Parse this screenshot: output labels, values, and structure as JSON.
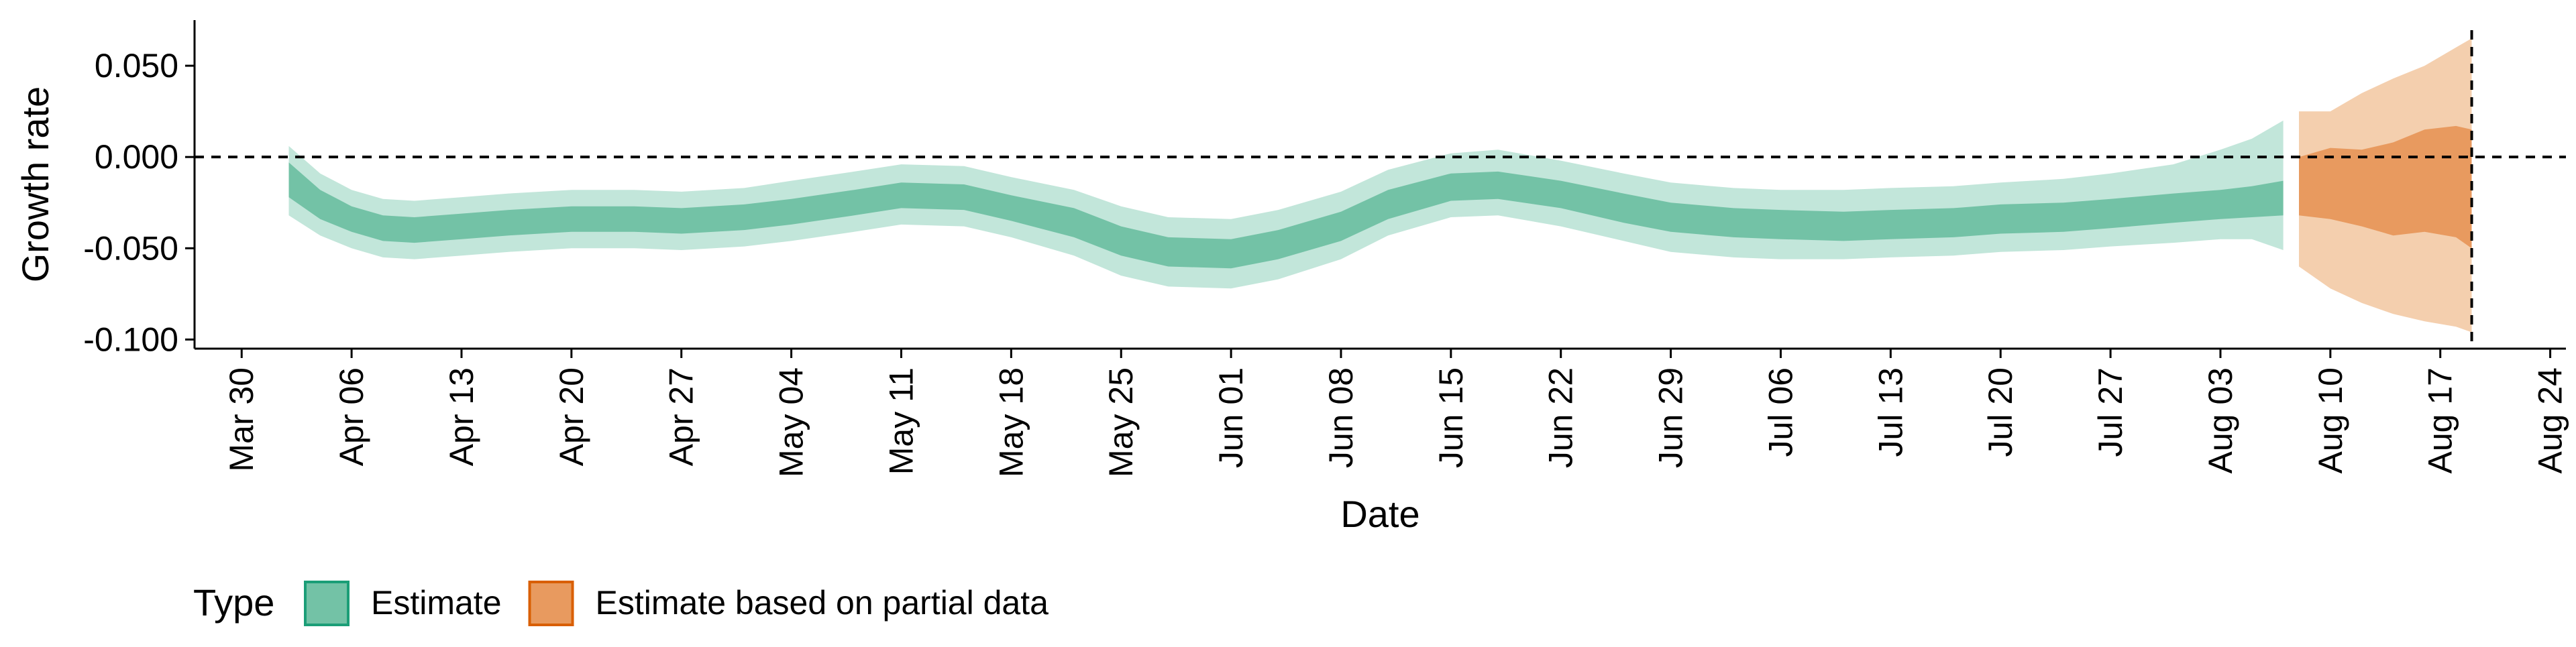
{
  "chart_data": {
    "type": "area",
    "xlabel": "Date",
    "ylabel": "Growth rate",
    "x_range": [
      "2020-03-27",
      "2020-08-25"
    ],
    "ylim": [
      -0.105,
      0.075
    ],
    "y_ticks": [
      {
        "value": 0.05,
        "label": "0.050"
      },
      {
        "value": 0.0,
        "label": "0.000"
      },
      {
        "value": -0.05,
        "label": "-0.050"
      },
      {
        "value": -0.1,
        "label": "-0.100"
      }
    ],
    "x_ticks": [
      {
        "date": "2020-03-30",
        "label": "Mar 30"
      },
      {
        "date": "2020-04-06",
        "label": "Apr 06"
      },
      {
        "date": "2020-04-13",
        "label": "Apr 13"
      },
      {
        "date": "2020-04-20",
        "label": "Apr 20"
      },
      {
        "date": "2020-04-27",
        "label": "Apr 27"
      },
      {
        "date": "2020-05-04",
        "label": "May 04"
      },
      {
        "date": "2020-05-11",
        "label": "May 11"
      },
      {
        "date": "2020-05-18",
        "label": "May 18"
      },
      {
        "date": "2020-05-25",
        "label": "May 25"
      },
      {
        "date": "2020-06-01",
        "label": "Jun 01"
      },
      {
        "date": "2020-06-08",
        "label": "Jun 08"
      },
      {
        "date": "2020-06-15",
        "label": "Jun 15"
      },
      {
        "date": "2020-06-22",
        "label": "Jun 22"
      },
      {
        "date": "2020-06-29",
        "label": "Jun 29"
      },
      {
        "date": "2020-07-06",
        "label": "Jul 06"
      },
      {
        "date": "2020-07-13",
        "label": "Jul 13"
      },
      {
        "date": "2020-07-20",
        "label": "Jul 20"
      },
      {
        "date": "2020-07-27",
        "label": "Jul 27"
      },
      {
        "date": "2020-08-03",
        "label": "Aug 03"
      },
      {
        "date": "2020-08-10",
        "label": "Aug 10"
      },
      {
        "date": "2020-08-17",
        "label": "Aug 17"
      },
      {
        "date": "2020-08-24",
        "label": "Aug 24"
      }
    ],
    "reference_lines": {
      "horizontal_y": 0.0,
      "vertical_date": "2020-08-19"
    },
    "legend": {
      "title": "Type",
      "position": "bottom-left",
      "entries": [
        {
          "label": "Estimate",
          "fill": "#73c2a6",
          "border": "#1b9e77"
        },
        {
          "label": "Estimate based on partial data",
          "fill": "#e89a5f",
          "border": "#d95f02"
        }
      ]
    },
    "series": [
      {
        "name": "Estimate",
        "color_inner": "#73c2a6",
        "color_outer": "#c2e6da",
        "x": [
          "2020-04-02",
          "2020-04-04",
          "2020-04-06",
          "2020-04-08",
          "2020-04-10",
          "2020-04-13",
          "2020-04-16",
          "2020-04-20",
          "2020-04-24",
          "2020-04-27",
          "2020-05-01",
          "2020-05-04",
          "2020-05-08",
          "2020-05-11",
          "2020-05-15",
          "2020-05-18",
          "2020-05-22",
          "2020-05-25",
          "2020-05-28",
          "2020-06-01",
          "2020-06-04",
          "2020-06-08",
          "2020-06-11",
          "2020-06-15",
          "2020-06-18",
          "2020-06-22",
          "2020-06-26",
          "2020-06-29",
          "2020-07-03",
          "2020-07-06",
          "2020-07-10",
          "2020-07-13",
          "2020-07-17",
          "2020-07-20",
          "2020-07-24",
          "2020-07-27",
          "2020-07-31",
          "2020-08-03",
          "2020-08-05",
          "2020-08-07"
        ],
        "median": [
          -0.012,
          -0.026,
          -0.034,
          -0.039,
          -0.04,
          -0.038,
          -0.036,
          -0.034,
          -0.034,
          -0.035,
          -0.033,
          -0.03,
          -0.025,
          -0.021,
          -0.022,
          -0.028,
          -0.036,
          -0.046,
          -0.052,
          -0.053,
          -0.048,
          -0.038,
          -0.026,
          -0.017,
          -0.016,
          -0.021,
          -0.028,
          -0.033,
          -0.036,
          -0.037,
          -0.038,
          -0.037,
          -0.036,
          -0.034,
          -0.033,
          -0.031,
          -0.028,
          -0.026,
          -0.025,
          -0.022
        ],
        "inner_lower": [
          -0.022,
          -0.034,
          -0.041,
          -0.046,
          -0.047,
          -0.045,
          -0.043,
          -0.041,
          -0.041,
          -0.042,
          -0.04,
          -0.037,
          -0.032,
          -0.028,
          -0.029,
          -0.035,
          -0.044,
          -0.054,
          -0.06,
          -0.061,
          -0.056,
          -0.046,
          -0.034,
          -0.024,
          -0.023,
          -0.028,
          -0.036,
          -0.041,
          -0.044,
          -0.045,
          -0.046,
          -0.045,
          -0.044,
          -0.042,
          -0.041,
          -0.039,
          -0.036,
          -0.034,
          -0.033,
          -0.032
        ],
        "inner_upper": [
          -0.003,
          -0.018,
          -0.027,
          -0.032,
          -0.033,
          -0.031,
          -0.029,
          -0.027,
          -0.027,
          -0.028,
          -0.026,
          -0.023,
          -0.018,
          -0.014,
          -0.015,
          -0.021,
          -0.028,
          -0.038,
          -0.044,
          -0.045,
          -0.04,
          -0.03,
          -0.018,
          -0.009,
          -0.008,
          -0.013,
          -0.02,
          -0.025,
          -0.028,
          -0.029,
          -0.03,
          -0.029,
          -0.028,
          -0.026,
          -0.025,
          -0.023,
          -0.02,
          -0.018,
          -0.016,
          -0.013
        ],
        "outer_lower": [
          -0.032,
          -0.043,
          -0.05,
          -0.055,
          -0.056,
          -0.054,
          -0.052,
          -0.05,
          -0.05,
          -0.051,
          -0.049,
          -0.046,
          -0.041,
          -0.037,
          -0.038,
          -0.044,
          -0.054,
          -0.065,
          -0.071,
          -0.072,
          -0.067,
          -0.056,
          -0.043,
          -0.033,
          -0.032,
          -0.038,
          -0.046,
          -0.052,
          -0.055,
          -0.056,
          -0.056,
          -0.055,
          -0.054,
          -0.052,
          -0.051,
          -0.049,
          -0.047,
          -0.045,
          -0.045,
          -0.051
        ],
        "outer_upper": [
          0.006,
          -0.009,
          -0.018,
          -0.023,
          -0.024,
          -0.022,
          -0.02,
          -0.018,
          -0.018,
          -0.019,
          -0.017,
          -0.013,
          -0.008,
          -0.004,
          -0.005,
          -0.011,
          -0.018,
          -0.027,
          -0.033,
          -0.034,
          -0.029,
          -0.019,
          -0.007,
          0.002,
          0.004,
          -0.002,
          -0.009,
          -0.014,
          -0.017,
          -0.018,
          -0.018,
          -0.017,
          -0.016,
          -0.014,
          -0.012,
          -0.009,
          -0.004,
          0.004,
          0.01,
          0.02
        ]
      },
      {
        "name": "Estimate based on partial data",
        "color_inner": "#e89a5f",
        "color_outer": "#f4cfae",
        "x": [
          "2020-08-08",
          "2020-08-10",
          "2020-08-12",
          "2020-08-14",
          "2020-08-16",
          "2020-08-18",
          "2020-08-19"
        ],
        "median": [
          -0.015,
          -0.012,
          -0.015,
          -0.014,
          -0.012,
          -0.011,
          -0.015
        ],
        "inner_lower": [
          -0.032,
          -0.034,
          -0.038,
          -0.043,
          -0.041,
          -0.044,
          -0.05
        ],
        "inner_upper": [
          0.0,
          0.005,
          0.004,
          0.008,
          0.015,
          0.017,
          0.015
        ],
        "outer_lower": [
          -0.06,
          -0.072,
          -0.08,
          -0.086,
          -0.09,
          -0.093,
          -0.096
        ],
        "outer_upper": [
          0.025,
          0.025,
          0.035,
          0.043,
          0.05,
          0.06,
          0.065
        ]
      }
    ]
  }
}
